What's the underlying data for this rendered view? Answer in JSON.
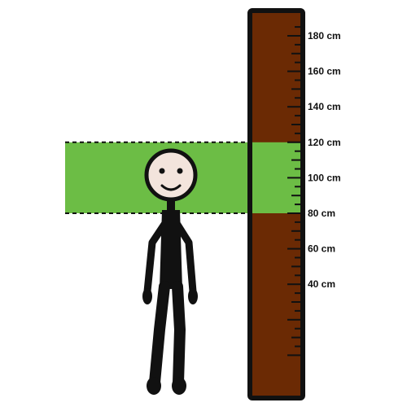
{
  "scene": {
    "background_color": "#ffffff",
    "highlight_color": "#6cbd45",
    "ruler_color": "#6b2a04",
    "outline_color": "#111111",
    "face_color": "#f3e4dc"
  },
  "ruler": {
    "unit": "cm",
    "labels": [
      {
        "value": 180,
        "text": "180 cm"
      },
      {
        "value": 160,
        "text": "160 cm"
      },
      {
        "value": 140,
        "text": "140 cm"
      },
      {
        "value": 120,
        "text": "120 cm"
      },
      {
        "value": 100,
        "text": "100 cm"
      },
      {
        "value": 80,
        "text": "80 cm"
      },
      {
        "value": 60,
        "text": "60 cm"
      },
      {
        "value": 40,
        "text": "40 cm"
      }
    ],
    "highlight_range": [
      80,
      120
    ]
  },
  "figure": {
    "icon": "stick-person-icon",
    "expression": "smile"
  }
}
